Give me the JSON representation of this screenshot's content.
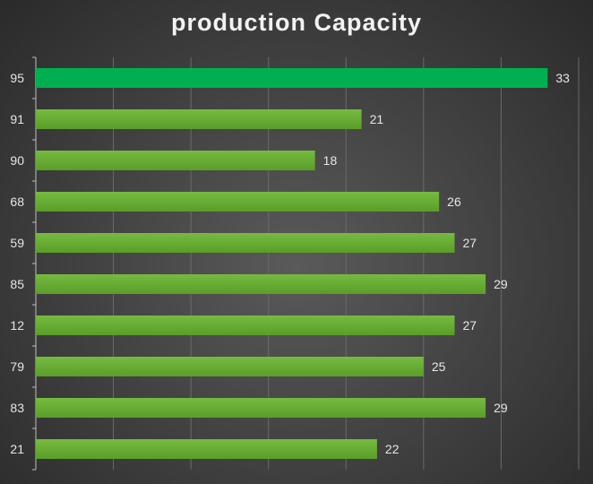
{
  "chart_data": {
    "type": "bar",
    "orientation": "horizontal",
    "title": "production Capacity",
    "categories": [
      "95",
      "91",
      "90",
      "68",
      "59",
      "85",
      "12",
      "79",
      "83",
      "21"
    ],
    "series": [
      {
        "values": [
          33,
          21,
          18,
          26,
          27,
          29,
          27,
          25,
          29,
          22
        ]
      }
    ],
    "xlim": [
      0,
      35
    ],
    "data_labels": true,
    "grid": "vertical",
    "colors": {
      "highlight_bar": "#00b050",
      "bar": "#62a82e",
      "bar_light": "#74b83e",
      "label": "#e6e6e6",
      "grid": "#6a6a6a",
      "axis": "#bfbfbf"
    },
    "highlight_index": 0
  }
}
